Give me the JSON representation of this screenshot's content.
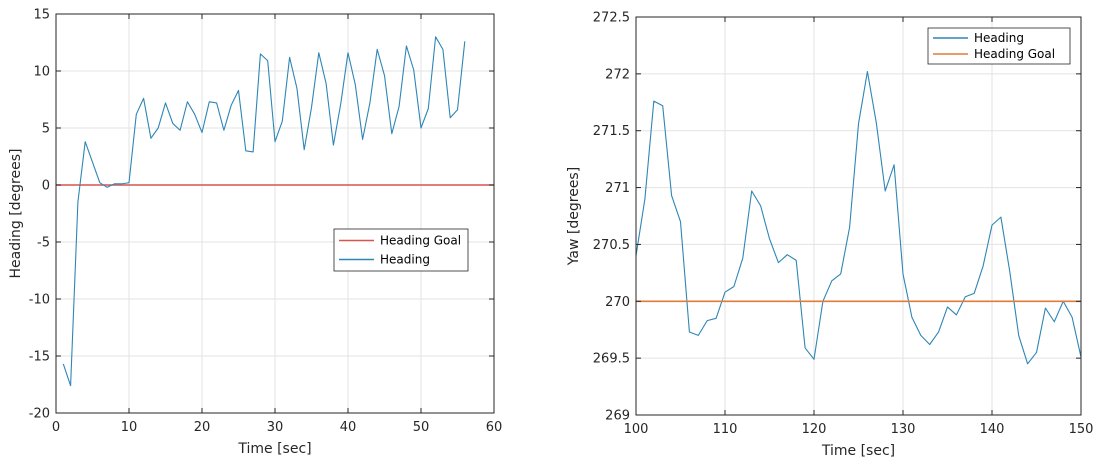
{
  "colors": {
    "heading_left": "#2e86b5",
    "goal_left": "#d9534f",
    "heading_right": "#2e86b5",
    "goal_right": "#e07b39",
    "grid": "#e3e3e3",
    "axis": "#262626"
  },
  "chart_data": [
    {
      "type": "line",
      "xlabel": "Time [sec]",
      "ylabel": "Heading [degrees]",
      "xlim": [
        0,
        60
      ],
      "ylim": [
        -20,
        15
      ],
      "xticks": [
        0,
        10,
        20,
        30,
        40,
        50,
        60
      ],
      "yticks": [
        -20,
        -15,
        -10,
        -5,
        0,
        5,
        10,
        15
      ],
      "grid": true,
      "legend_position": "right-middle",
      "legend_order": [
        "Heading Goal",
        "Heading"
      ],
      "series": [
        {
          "name": "Heading Goal",
          "color": "#d9534f",
          "x": [
            0,
            60
          ],
          "y": [
            0,
            0
          ]
        },
        {
          "name": "Heading",
          "color": "#2e86b5",
          "x": [
            1,
            2,
            3,
            4,
            5,
            6,
            7,
            8,
            9,
            10,
            11,
            12,
            13,
            14,
            15,
            16,
            17,
            18,
            19,
            20,
            21,
            22,
            23,
            24,
            25,
            26,
            27,
            28,
            29,
            30,
            31,
            32,
            33,
            34,
            35,
            36,
            37,
            38,
            39,
            40,
            41,
            42,
            43,
            44,
            45,
            46,
            47,
            48,
            49,
            50,
            51,
            52,
            53,
            54,
            55,
            56
          ],
          "y": [
            -15.7,
            -17.6,
            -1.5,
            3.8,
            2.0,
            0.2,
            -0.2,
            0.1,
            0.1,
            0.2,
            6.2,
            7.6,
            4.1,
            5.0,
            7.2,
            5.4,
            4.8,
            7.3,
            6.2,
            4.6,
            7.3,
            7.2,
            4.8,
            7.0,
            8.3,
            3.0,
            2.9,
            11.5,
            10.9,
            3.8,
            5.6,
            11.2,
            8.5,
            3.1,
            6.8,
            11.6,
            8.9,
            3.5,
            7.1,
            11.6,
            8.8,
            4.0,
            7.2,
            11.9,
            9.6,
            4.5,
            6.9,
            12.2,
            10.1,
            5.0,
            6.7,
            13.0,
            11.9,
            5.9,
            6.6,
            12.6
          ]
        }
      ]
    },
    {
      "type": "line",
      "xlabel": "Time [sec]",
      "ylabel": "Yaw [degrees]",
      "xlim": [
        100,
        150
      ],
      "ylim": [
        269,
        272.5
      ],
      "xticks": [
        100,
        110,
        120,
        130,
        140,
        150
      ],
      "yticks": [
        269,
        269.5,
        270,
        270.5,
        271,
        271.5,
        272,
        272.5
      ],
      "grid": true,
      "legend_position": "top-right",
      "legend_order": [
        "Heading",
        "Heading Goal"
      ],
      "series": [
        {
          "name": "Heading",
          "color": "#2e86b5",
          "x": [
            100,
            101,
            102,
            103,
            104,
            105,
            106,
            107,
            108,
            109,
            110,
            111,
            112,
            113,
            114,
            115,
            116,
            117,
            118,
            119,
            120,
            121,
            122,
            123,
            124,
            125,
            126,
            127,
            128,
            129,
            130,
            131,
            132,
            133,
            134,
            135,
            136,
            137,
            138,
            139,
            140,
            141,
            142,
            143,
            144,
            145,
            146,
            147,
            148,
            149,
            150
          ],
          "y": [
            270.4,
            270.9,
            271.76,
            271.72,
            270.93,
            270.7,
            269.73,
            269.7,
            269.83,
            269.85,
            270.08,
            270.13,
            270.38,
            270.97,
            270.84,
            270.55,
            270.34,
            270.41,
            270.36,
            269.59,
            269.49,
            270.0,
            270.18,
            270.24,
            270.65,
            271.56,
            272.02,
            271.57,
            270.97,
            271.2,
            270.24,
            269.86,
            269.7,
            269.62,
            269.73,
            269.95,
            269.88,
            270.04,
            270.07,
            270.31,
            270.67,
            270.74,
            270.26,
            269.7,
            269.45,
            269.55,
            269.94,
            269.82,
            270.0,
            269.86,
            269.51
          ]
        },
        {
          "name": "Heading Goal",
          "color": "#e07b39",
          "x": [
            100,
            150
          ],
          "y": [
            270,
            270
          ]
        }
      ]
    }
  ]
}
